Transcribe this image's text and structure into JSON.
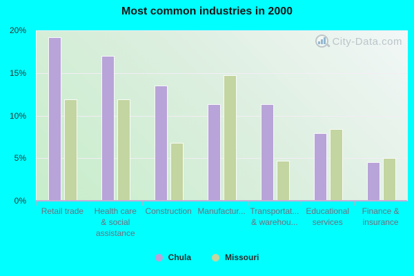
{
  "title": "Most common industries in 2000",
  "watermark": {
    "text": "City-Data.com"
  },
  "colors": {
    "background": "#00ffff",
    "chula_bar": "#b8a4d8",
    "missouri_bar": "#c3d5a0",
    "axis_line": "#c4aed8",
    "gridline": "#f4ecf5",
    "x_label": "#6e6e7e",
    "y_label": "#333333"
  },
  "legend": {
    "items": [
      {
        "label": "Chula",
        "color": "#b8a4d8"
      },
      {
        "label": "Missouri",
        "color": "#c3d5a0"
      }
    ]
  },
  "chart_data": {
    "type": "bar",
    "title": "Most common industries in 2000",
    "categories": [
      "Retail trade",
      "Health care & social assistance",
      "Construction",
      "Manufacturing",
      "Transportation & warehousing",
      "Educational services",
      "Finance & insurance"
    ],
    "category_display_lines": [
      [
        "Retail trade"
      ],
      [
        "Health care",
        "& social",
        "assistance"
      ],
      [
        "Construction"
      ],
      [
        "Manufactur..."
      ],
      [
        "Transportat...",
        "& warehou..."
      ],
      [
        "Educational",
        "services"
      ],
      [
        "Finance &",
        "insurance"
      ]
    ],
    "series": [
      {
        "name": "Chula",
        "color": "#b8a4d8",
        "values": [
          19.2,
          17.0,
          13.5,
          11.3,
          11.3,
          7.9,
          4.5
        ]
      },
      {
        "name": "Missouri",
        "color": "#c3d5a0",
        "values": [
          11.9,
          11.9,
          6.8,
          14.7,
          4.7,
          8.4,
          5.0
        ]
      }
    ],
    "ylabel": "",
    "xlabel": "",
    "ylim": [
      0,
      20
    ],
    "ytick_labels": [
      "20%",
      "15%",
      "10%",
      "5%",
      "0%"
    ],
    "grid": true,
    "legend_position": "bottom"
  }
}
